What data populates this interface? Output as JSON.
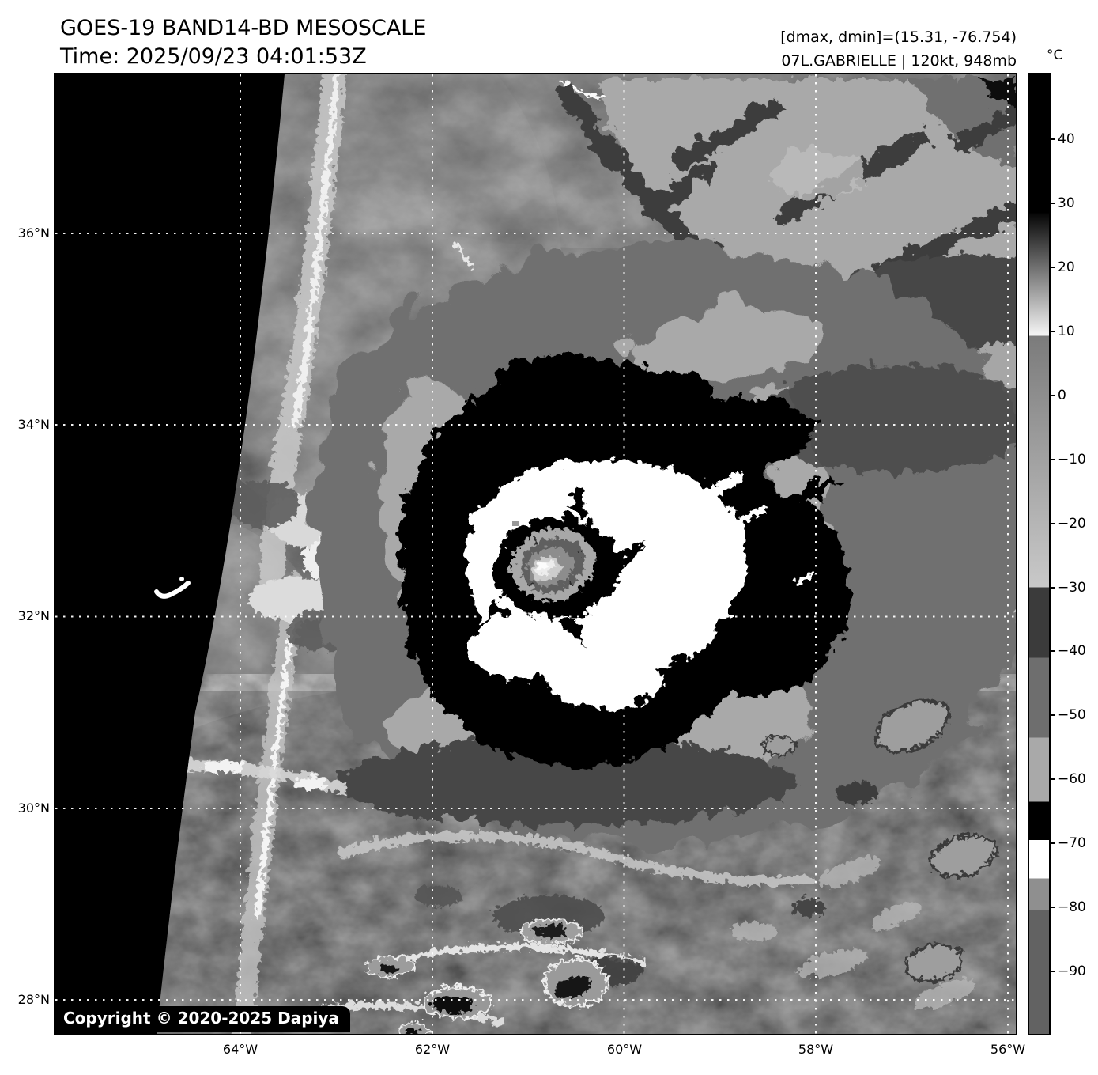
{
  "header": {
    "title": "GOES-19 BAND14-BD MESOSCALE",
    "time_line": "Time: 2025/09/23 04:01:53Z",
    "dmax_dmin": "[dmax, dmin]=(15.31, -76.754)",
    "storm_info": "07L.GABRIELLE | 120kt, 948mb"
  },
  "map": {
    "copyright": "Copyright © 2020-2025 Dapiya",
    "lat_labels": [
      "36°N",
      "34°N",
      "32°N",
      "30°N",
      "28°N"
    ],
    "lon_labels": [
      "64°W",
      "62°W",
      "60°W",
      "58°W",
      "56°W"
    ]
  },
  "colorbar": {
    "unit": "°C",
    "scale_max": 50.2,
    "scale_min": -99.8,
    "ticks": [
      {
        "value": 40,
        "label": "40"
      },
      {
        "value": 30,
        "label": "30"
      },
      {
        "value": 20,
        "label": "20"
      },
      {
        "value": 10,
        "label": "10"
      },
      {
        "value": 0,
        "label": "0"
      },
      {
        "value": -10,
        "label": "−10"
      },
      {
        "value": -20,
        "label": "−20"
      },
      {
        "value": -30,
        "label": "−30"
      },
      {
        "value": -40,
        "label": "−40"
      },
      {
        "value": -50,
        "label": "−50"
      },
      {
        "value": -60,
        "label": "−60"
      },
      {
        "value": -70,
        "label": "−70"
      },
      {
        "value": -80,
        "label": "−80"
      },
      {
        "value": -90,
        "label": "−90"
      }
    ],
    "segments": [
      {
        "from": 50.2,
        "to": 28.5,
        "top_color": "#000000",
        "bottom_color": "#000000"
      },
      {
        "from": 28.5,
        "to": 9.3,
        "top_color": "#060606",
        "bottom_color": "#f6f6f6"
      },
      {
        "from": 9.3,
        "to": -30,
        "top_color": "#7b7b7b",
        "bottom_color": "#c9c9c9"
      },
      {
        "from": -30,
        "to": -41,
        "top_color": "#3b3b3b",
        "bottom_color": "#3b3b3b"
      },
      {
        "from": -41,
        "to": -53.5,
        "top_color": "#6e6e6e",
        "bottom_color": "#6e6e6e"
      },
      {
        "from": -53.5,
        "to": -63.5,
        "top_color": "#a9a9a9",
        "bottom_color": "#a9a9a9"
      },
      {
        "from": -63.5,
        "to": -69.5,
        "top_color": "#000000",
        "bottom_color": "#000000"
      },
      {
        "from": -69.5,
        "to": -75.5,
        "top_color": "#ffffff",
        "bottom_color": "#ffffff"
      },
      {
        "from": -75.5,
        "to": -80.5,
        "top_color": "#8f8f8f",
        "bottom_color": "#8f8f8f"
      },
      {
        "from": -80.5,
        "to": -99.8,
        "top_color": "#626262",
        "bottom_color": "#626262"
      }
    ]
  }
}
